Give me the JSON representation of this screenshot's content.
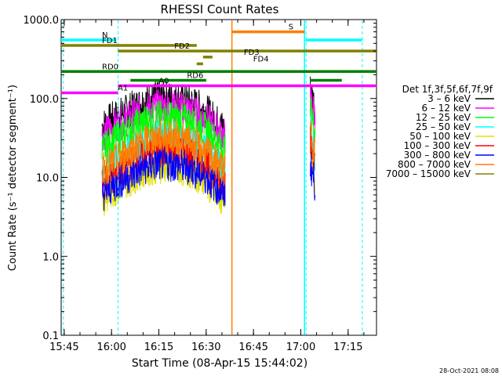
{
  "chart_data": {
    "type": "line",
    "title": "RHESSI Count Rates",
    "xlabel": "Start Time (08-Apr-15 15:44:02)",
    "ylabel": "Count Rate (s⁻¹ detector segment⁻¹)",
    "yscale": "log",
    "ylim": [
      0.1,
      1000
    ],
    "xlim": [
      "15:44:02",
      "17:24:00"
    ],
    "x_ticks": [
      "15:45",
      "16:00",
      "16:15",
      "16:30",
      "16:45",
      "17:00",
      "17:15"
    ],
    "y_ticks": [
      "0.1",
      "1.0",
      "10.0",
      "100.0",
      "1000.0"
    ],
    "legend": {
      "position": "right",
      "header": "Det 1f,3f,5f,6f,7f,9f",
      "entries": [
        {
          "name": "3 – 6 keV",
          "color": "#000000"
        },
        {
          "name": "6 – 12 keV",
          "color": "#ff00ff"
        },
        {
          "name": "12 – 25 keV",
          "color": "#00ff00"
        },
        {
          "name": "25 – 50 keV",
          "color": "#00ffff"
        },
        {
          "name": "50 – 100 keV",
          "color": "#e0e000"
        },
        {
          "name": "100 – 300 keV",
          "color": "#ff0000"
        },
        {
          "name": "300 – 800 keV",
          "color": "#0000ff"
        },
        {
          "name": "800 – 7000 keV",
          "color": "#ff7f00"
        },
        {
          "name": "7000 – 15000 keV",
          "color": "#808000"
        }
      ]
    },
    "vertical_markers": [
      {
        "time": "15:44:45",
        "style": "dashed",
        "color": "#00ffff"
      },
      {
        "time": "16:02:05",
        "style": "dashed",
        "color": "#00ffff"
      },
      {
        "time": "17:01:40",
        "style": "dashed",
        "color": "#00ffff"
      },
      {
        "time": "17:19:30",
        "style": "dashed",
        "color": "#00ffff"
      },
      {
        "time": "16:38:10",
        "style": "solid",
        "color": "#ff7f00"
      },
      {
        "time": "17:01:10",
        "style": "solid",
        "color": "#00ffff"
      }
    ],
    "flags": [
      {
        "label": "N",
        "color": "#00ffff",
        "level": 550,
        "segments": [
          [
            "15:44:02",
            "16:01:30"
          ],
          [
            "17:01:30",
            "17:19:30"
          ]
        ]
      },
      {
        "label": "S",
        "color": "#ff7f00",
        "level": 700,
        "segments": [
          [
            "16:38:10",
            "17:01:10"
          ]
        ]
      },
      {
        "label": "FD1",
        "color": "#808000",
        "level": 470,
        "segments": [
          [
            "15:44:02",
            "16:27:00"
          ]
        ]
      },
      {
        "label": "FD2",
        "color": "#808000",
        "level": 400,
        "segments": [
          [
            "16:02:00",
            "17:24:00"
          ]
        ]
      },
      {
        "label": "FD3",
        "color": "#808000",
        "level": 335,
        "segments": [
          [
            "16:29:00",
            "16:32:00"
          ]
        ]
      },
      {
        "label": "FD4",
        "color": "#808000",
        "level": 275,
        "segments": [
          [
            "16:27:00",
            "16:29:00"
          ]
        ]
      },
      {
        "label": "RD0",
        "color": "#008000",
        "level": 220,
        "segments": [
          [
            "15:44:02",
            "17:01:30"
          ],
          [
            "17:01:30",
            "17:24:00"
          ]
        ]
      },
      {
        "label": "RD6",
        "color": "#008000",
        "level": 170,
        "segments": [
          [
            "16:06:00",
            "16:30:00"
          ],
          [
            "17:03:00",
            "17:13:00"
          ]
        ]
      },
      {
        "label": "A0",
        "color": "#ff00ff",
        "level": 145,
        "segments": [
          [
            "16:02:00",
            "17:24:00"
          ]
        ]
      },
      {
        "label": "A1",
        "color": "#ff00ff",
        "level": 118,
        "segments": [
          [
            "15:44:02",
            "16:02:00"
          ]
        ]
      }
    ],
    "series": [
      {
        "name": "3 – 6 keV",
        "color": "#000000",
        "segments": [
          {
            "x": [
              "15:57",
              "16:00",
              "16:05",
              "16:10",
              "16:15",
              "16:20",
              "16:25",
              "16:30",
              "16:36"
            ],
            "y": [
              45,
              55,
              70,
              90,
              105,
              100,
              90,
              70,
              40
            ]
          },
          {
            "x": [
              "17:03:00",
              "17:04:30"
            ],
            "y": [
              130,
              80
            ]
          }
        ]
      },
      {
        "name": "6 – 12 keV",
        "color": "#ff00ff",
        "segments": [
          {
            "x": [
              "15:57",
              "16:00",
              "16:05",
              "16:10",
              "16:15",
              "16:20",
              "16:25",
              "16:30",
              "16:36"
            ],
            "y": [
              35,
              42,
              55,
              70,
              80,
              78,
              70,
              55,
              32
            ]
          },
          {
            "x": [
              "17:03:00",
              "17:04:30"
            ],
            "y": [
              100,
              60
            ]
          }
        ]
      },
      {
        "name": "12 – 25 keV",
        "color": "#00ff00",
        "segments": [
          {
            "x": [
              "15:57",
              "16:00",
              "16:05",
              "16:10",
              "16:15",
              "16:20",
              "16:25",
              "16:30",
              "16:36"
            ],
            "y": [
              22,
              28,
              38,
              50,
              58,
              56,
              50,
              40,
              22
            ]
          },
          {
            "x": [
              "17:03:00",
              "17:04:30"
            ],
            "y": [
              70,
              40
            ]
          }
        ]
      },
      {
        "name": "25 – 50 keV",
        "color": "#00ffff",
        "segments": [
          {
            "x": [
              "15:57",
              "16:00",
              "16:05",
              "16:10",
              "16:15",
              "16:20",
              "16:25",
              "16:30",
              "16:36"
            ],
            "y": [
              11,
              14,
              20,
              27,
              32,
              31,
              27,
              21,
              12
            ]
          },
          {
            "x": [
              "17:03:00",
              "17:04:30"
            ],
            "y": [
              40,
              20
            ]
          }
        ]
      },
      {
        "name": "50 – 100 keV",
        "color": "#e0e000",
        "segments": [
          {
            "x": [
              "15:57",
              "16:00",
              "16:05",
              "16:10",
              "16:15",
              "16:20",
              "16:25",
              "16:30",
              "16:36"
            ],
            "y": [
              5,
              6.5,
              9,
              12,
              14,
              13.5,
              12,
              9,
              5
            ]
          },
          {
            "x": [
              "17:03:00",
              "17:04:30"
            ],
            "y": [
              18,
              9
            ]
          }
        ]
      },
      {
        "name": "100 – 300 keV",
        "color": "#ff0000",
        "segments": [
          {
            "x": [
              "15:57",
              "16:00",
              "16:05",
              "16:10",
              "16:15",
              "16:20",
              "16:25",
              "16:30",
              "16:36"
            ],
            "y": [
              8,
              10,
              14,
              19,
              22,
              21.5,
              19,
              14,
              8
            ]
          },
          {
            "x": [
              "17:03:00",
              "17:04:30"
            ],
            "y": [
              28,
              14
            ]
          }
        ]
      },
      {
        "name": "300 – 800 keV",
        "color": "#0000ff",
        "segments": [
          {
            "x": [
              "15:57",
              "16:00",
              "16:05",
              "16:10",
              "16:15",
              "16:20",
              "16:25",
              "16:30",
              "16:36"
            ],
            "y": [
              6,
              7.5,
              10,
              13,
              15,
              14.5,
              13,
              10,
              6
            ]
          },
          {
            "x": [
              "17:03:00",
              "17:04:30"
            ],
            "y": [
              15,
              8
            ]
          }
        ]
      },
      {
        "name": "800 – 7000 keV",
        "color": "#ff7f00",
        "segments": [
          {
            "x": [
              "15:57",
              "16:00",
              "16:05",
              "16:10",
              "16:15",
              "16:20",
              "16:25",
              "16:30",
              "16:36"
            ],
            "y": [
              12,
              15,
              21,
              28,
              33,
              32,
              28,
              21,
              12
            ]
          },
          {
            "x": [
              "17:03:00",
              "17:04:30"
            ],
            "y": [
              40,
              20
            ]
          }
        ]
      },
      {
        "name": "7000 – 15000 keV",
        "color": "#808000",
        "segments": []
      }
    ]
  },
  "footer": {
    "timestamp": "28-Oct-2021 08:08"
  }
}
